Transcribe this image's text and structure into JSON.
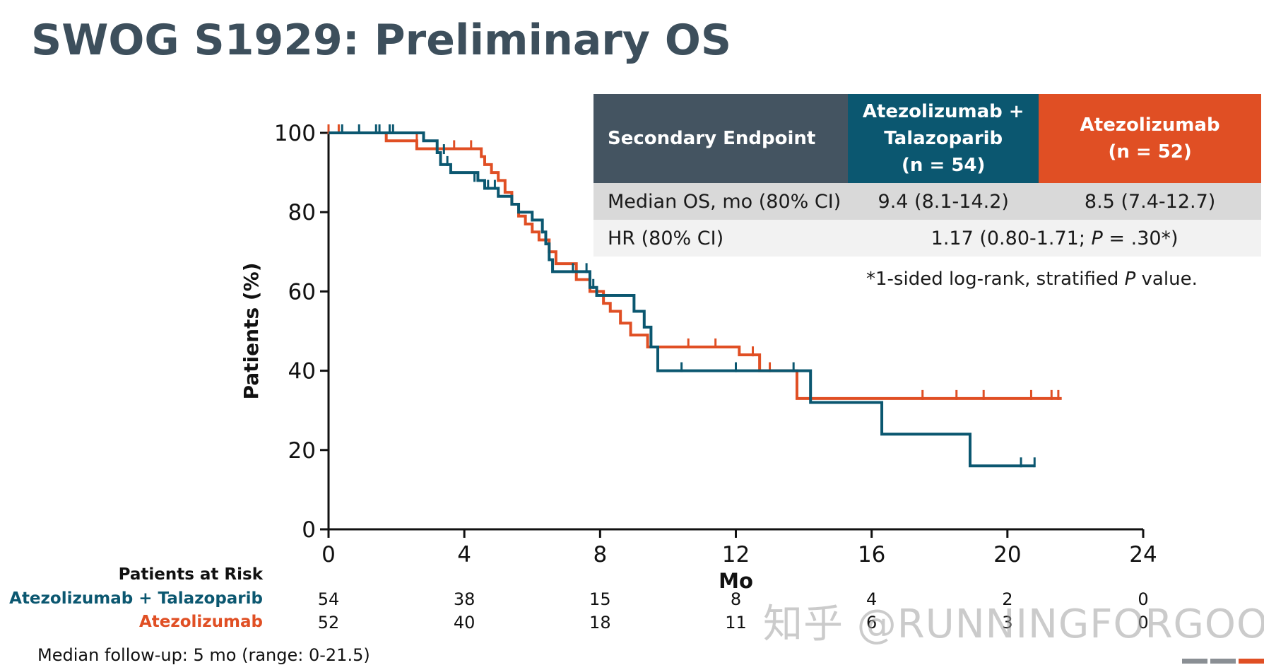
{
  "title": "SWOG S1929: Preliminary OS",
  "table": {
    "header_endpoint": "Secondary Endpoint",
    "header_combo_l1": "Atezolizumab +",
    "header_combo_l2": "Talazoparib",
    "header_combo_l3": "(n = 54)",
    "header_atezo_l1": "Atezolizumab",
    "header_atezo_l2": "(n = 52)",
    "row_median_label": "Median OS, mo (80% CI)",
    "row_median_combo": "9.4 (8.1-14.2)",
    "row_median_atezo": "8.5 (7.4-12.7)",
    "row_hr_label": "HR (80% CI)",
    "row_hr_value_pre": "1.17 (0.80-1.71; ",
    "row_hr_value_p": "P",
    "row_hr_value_post": " = .30*)"
  },
  "footnote": {
    "pre": "*1-sided log-rank, stratified ",
    "p": "P",
    "post": " value."
  },
  "risk": {
    "title": "Patients at Risk",
    "combo_label": "Atezolizumab + Talazoparib",
    "atezo_label": "Atezolizumab",
    "combo_values": [
      "54",
      "38",
      "15",
      "8",
      "4",
      "2",
      "0"
    ],
    "atezo_values": [
      "52",
      "40",
      "18",
      "11",
      "6",
      "3",
      "0"
    ]
  },
  "median_followup": "Median follow-up: 5 mo (range: 0-21.5)",
  "watermark": "知乎 @RUNNINGFORGOOD",
  "colors": {
    "combo": "#0b5770",
    "atezo": "#e04f24",
    "title": "#3d4f5c"
  },
  "chart_data": {
    "type": "line",
    "kind": "kaplan-meier",
    "xlabel": "Mo",
    "ylabel": "Patients (%)",
    "xlim": [
      0,
      24
    ],
    "ylim": [
      0,
      100
    ],
    "xticks": [
      0,
      4,
      8,
      12,
      16,
      20,
      24
    ],
    "yticks": [
      0,
      20,
      40,
      60,
      80,
      100
    ],
    "series": [
      {
        "name": "Atezolizumab",
        "color": "#e04f24",
        "steps": [
          [
            0,
            100
          ],
          [
            1.7,
            100
          ],
          [
            1.7,
            98
          ],
          [
            2.6,
            98
          ],
          [
            2.6,
            96
          ],
          [
            3.6,
            96
          ],
          [
            4.5,
            94
          ],
          [
            4.6,
            92
          ],
          [
            4.8,
            90
          ],
          [
            5.0,
            88
          ],
          [
            5.2,
            85
          ],
          [
            5.4,
            82
          ],
          [
            5.6,
            79
          ],
          [
            5.8,
            77
          ],
          [
            6.0,
            75
          ],
          [
            6.2,
            73
          ],
          [
            6.5,
            70
          ],
          [
            6.7,
            67
          ],
          [
            7.2,
            67
          ],
          [
            7.3,
            63
          ],
          [
            7.7,
            60
          ],
          [
            8.1,
            57
          ],
          [
            8.3,
            55
          ],
          [
            8.6,
            52
          ],
          [
            8.9,
            49
          ],
          [
            9.4,
            46
          ],
          [
            12.1,
            44
          ],
          [
            12.7,
            40
          ],
          [
            13.8,
            35
          ],
          [
            13.8,
            33
          ],
          [
            21.6,
            33
          ]
        ],
        "censored": [
          [
            0,
            100
          ],
          [
            0.3,
            100
          ],
          [
            2.6,
            98
          ],
          [
            3.7,
            96
          ],
          [
            4.2,
            96
          ],
          [
            10.6,
            46
          ],
          [
            11.4,
            46
          ],
          [
            12.5,
            44
          ],
          [
            13.0,
            40
          ],
          [
            17.5,
            33
          ],
          [
            18.5,
            33
          ],
          [
            19.3,
            33
          ],
          [
            20.7,
            33
          ],
          [
            21.3,
            33
          ],
          [
            21.5,
            33
          ]
        ]
      },
      {
        "name": "Atezolizumab + Talazoparib",
        "color": "#0b5770",
        "steps": [
          [
            0,
            100
          ],
          [
            2.8,
            98
          ],
          [
            3.2,
            95
          ],
          [
            3.3,
            92
          ],
          [
            3.6,
            90
          ],
          [
            4.4,
            88
          ],
          [
            4.6,
            86
          ],
          [
            5.0,
            84
          ],
          [
            5.4,
            82
          ],
          [
            5.6,
            80
          ],
          [
            6.0,
            78
          ],
          [
            6.3,
            75
          ],
          [
            6.4,
            72
          ],
          [
            6.5,
            68
          ],
          [
            6.6,
            65
          ],
          [
            7.7,
            61
          ],
          [
            7.9,
            59
          ],
          [
            9.0,
            55
          ],
          [
            9.3,
            51
          ],
          [
            9.5,
            46
          ],
          [
            9.7,
            40
          ],
          [
            14.2,
            35
          ],
          [
            14.2,
            32
          ],
          [
            16.3,
            32
          ],
          [
            16.3,
            24
          ],
          [
            18.9,
            24
          ],
          [
            18.9,
            16
          ],
          [
            20.8,
            16
          ]
        ],
        "censored": [
          [
            0.4,
            100
          ],
          [
            0.9,
            100
          ],
          [
            1.4,
            100
          ],
          [
            1.5,
            100
          ],
          [
            1.8,
            100
          ],
          [
            1.9,
            100
          ],
          [
            3.4,
            95
          ],
          [
            3.5,
            92
          ],
          [
            4.3,
            88
          ],
          [
            4.7,
            86
          ],
          [
            4.9,
            86
          ],
          [
            6.0,
            78
          ],
          [
            6.3,
            75
          ],
          [
            7.2,
            65
          ],
          [
            7.6,
            65
          ],
          [
            7.8,
            61
          ],
          [
            10.4,
            40
          ],
          [
            12.0,
            40
          ],
          [
            13.7,
            40
          ],
          [
            20.4,
            16
          ],
          [
            20.8,
            16
          ]
        ]
      }
    ]
  }
}
